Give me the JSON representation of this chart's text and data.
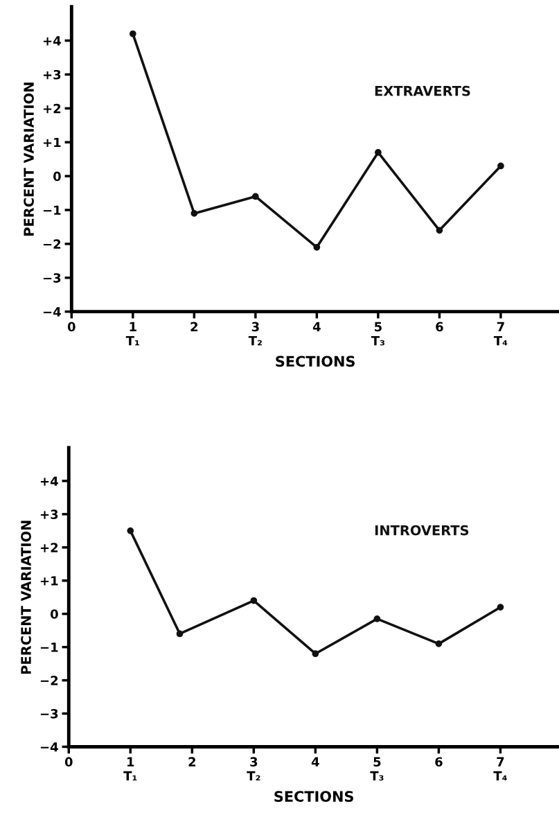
{
  "chart_data": [
    {
      "type": "line",
      "xlabel": "SECTIONS",
      "ylabel": "PERCENT VARIATION",
      "xlim": [
        0,
        7.95
      ],
      "ylim": [
        -4,
        5.0
      ],
      "xticks": [
        0,
        {
          "value": 1,
          "label": "1\nT₁"
        },
        2,
        {
          "value": 3,
          "label": "3\nT₂"
        },
        4,
        {
          "value": 5,
          "label": "5\nT₃"
        },
        6,
        {
          "value": 7,
          "label": "7\nT₄"
        }
      ],
      "yticks": [
        {
          "value": -4,
          "label": "−4"
        },
        {
          "value": -3,
          "label": "−3"
        },
        {
          "value": -2,
          "label": "−2"
        },
        {
          "value": -1,
          "label": "−1"
        },
        0,
        {
          "value": 1,
          "label": "+1"
        },
        {
          "value": 2,
          "label": "+2"
        },
        {
          "value": 3,
          "label": "+3"
        },
        {
          "value": 4,
          "label": "+4"
        }
      ],
      "marker": "circle",
      "grid": false,
      "legend": false,
      "series": [
        {
          "name": "EXTRAVERTS",
          "color": "#111111",
          "x": [
            1,
            2,
            3,
            4,
            5,
            6,
            7
          ],
          "values": [
            4.2,
            -1.1,
            -0.6,
            -2.1,
            0.7,
            -1.6,
            0.3
          ]
        }
      ]
    },
    {
      "type": "line",
      "xlabel": "SECTIONS",
      "ylabel": "PERCENT VARIATION",
      "xlim": [
        0,
        7.95
      ],
      "ylim": [
        -4,
        5.0
      ],
      "xticks": [
        0,
        {
          "value": 1,
          "label": "1\nT₁"
        },
        2,
        {
          "value": 3,
          "label": "3\nT₂"
        },
        4,
        {
          "value": 5,
          "label": "5\nT₃"
        },
        6,
        {
          "value": 7,
          "label": "7\nT₄"
        }
      ],
      "yticks": [
        {
          "value": -4,
          "label": "−4"
        },
        {
          "value": -3,
          "label": "−3"
        },
        {
          "value": -2,
          "label": "−2"
        },
        {
          "value": -1,
          "label": "−1"
        },
        0,
        {
          "value": 1,
          "label": "+1"
        },
        {
          "value": 2,
          "label": "+2"
        },
        {
          "value": 3,
          "label": "+3"
        },
        {
          "value": 4,
          "label": "+4"
        }
      ],
      "marker": "circle",
      "grid": false,
      "legend": false,
      "series": [
        {
          "name": "INTROVERTS",
          "color": "#111111",
          "x": [
            1,
            1.8,
            3,
            4,
            5,
            6,
            7
          ],
          "values": [
            2.5,
            -0.6,
            0.4,
            -1.2,
            -0.15,
            -0.9,
            0.2
          ]
        }
      ]
    }
  ]
}
